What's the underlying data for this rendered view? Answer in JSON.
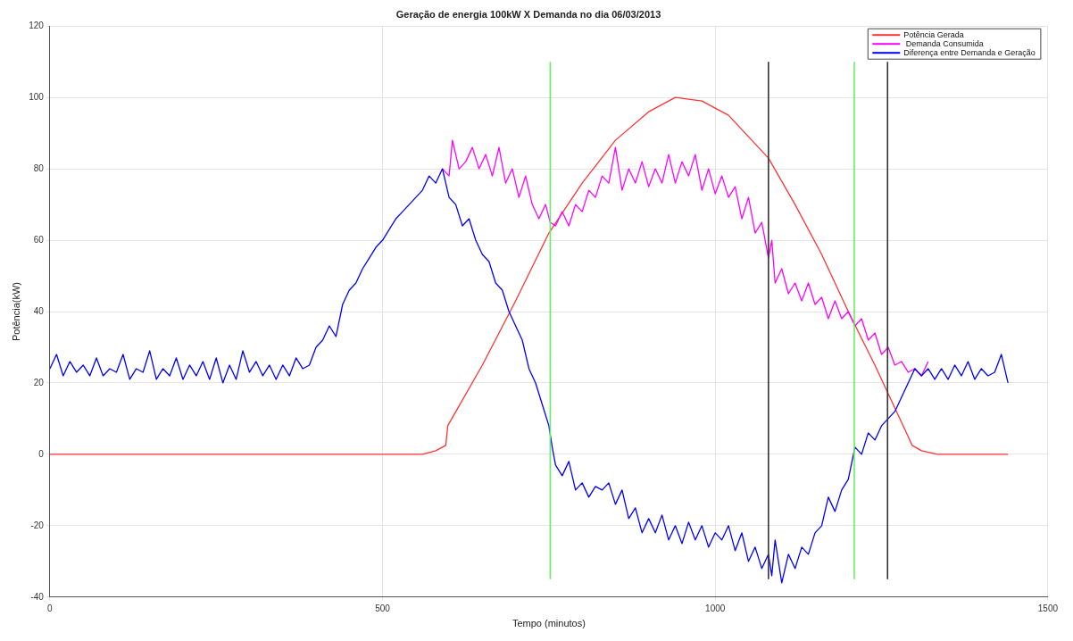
{
  "chart_data": {
    "type": "line",
    "title": "Geração de energia 100kW X Demanda no dia 06/03/2013",
    "xlabel": "Tempo (minutos)",
    "ylabel": "Potência(kW)",
    "xlim": [
      0,
      1500
    ],
    "xticks": [
      0,
      500,
      1000,
      1500
    ],
    "ylim": [
      -40,
      120
    ],
    "yticks": [
      -40,
      -20,
      0,
      20,
      40,
      60,
      80,
      100,
      120
    ],
    "grid": true,
    "legend": "top right",
    "marker": "none",
    "line_style": "solid",
    "series": [
      {
        "name": "Potência Gerada",
        "color": "#ff3333",
        "x": [
          0,
          560,
          580,
          595,
          598,
          650,
          700,
          750,
          800,
          850,
          900,
          940,
          980,
          1020,
          1060,
          1080,
          1120,
          1160,
          1200,
          1240,
          1270,
          1285,
          1296,
          1310,
          1334,
          1440
        ],
        "values": [
          0,
          0,
          1,
          2.5,
          8,
          25,
          43,
          62,
          76,
          88,
          96,
          100,
          99,
          95,
          87,
          83,
          70,
          56,
          40,
          25,
          13,
          7,
          2.5,
          1,
          0,
          0
        ]
      },
      {
        "name": " Demanda Consumida",
        "color": "#ff00ff",
        "x": [
          590,
          600,
          605,
          615,
          625,
          635,
          645,
          655,
          665,
          675,
          685,
          695,
          705,
          715,
          725,
          735,
          745,
          752,
          760,
          770,
          780,
          790,
          800,
          810,
          820,
          830,
          840,
          850,
          860,
          870,
          880,
          890,
          900,
          910,
          920,
          930,
          940,
          950,
          960,
          970,
          980,
          990,
          1000,
          1010,
          1020,
          1030,
          1040,
          1050,
          1060,
          1070,
          1080,
          1085,
          1090,
          1100,
          1110,
          1120,
          1130,
          1140,
          1150,
          1160,
          1170,
          1180,
          1190,
          1200,
          1210,
          1220,
          1230,
          1240,
          1250,
          1260,
          1270,
          1280,
          1290,
          1300,
          1310,
          1320
        ],
        "values": [
          80,
          78,
          88,
          80,
          82,
          86,
          80,
          84,
          78,
          86,
          76,
          80,
          72,
          78,
          70,
          66,
          70,
          65,
          64,
          68,
          64,
          70,
          68,
          74,
          72,
          78,
          76,
          86,
          74,
          80,
          76,
          82,
          75,
          80,
          76,
          84,
          76,
          82,
          78,
          84,
          74,
          80,
          73,
          78,
          72,
          75,
          66,
          72,
          62,
          65,
          55,
          60,
          48,
          52,
          45,
          48,
          43,
          48,
          42,
          44,
          38,
          43,
          38,
          40,
          36,
          38,
          32,
          34,
          28,
          30,
          25,
          26,
          23,
          24,
          22,
          26
        ]
      },
      {
        "name": "Diferença entre Demanda e Geração",
        "color": "#0000ff",
        "x": [
          0,
          10,
          20,
          30,
          40,
          50,
          60,
          70,
          80,
          90,
          100,
          110,
          120,
          130,
          140,
          150,
          160,
          170,
          180,
          190,
          200,
          210,
          220,
          230,
          240,
          250,
          260,
          270,
          280,
          290,
          300,
          310,
          320,
          330,
          340,
          350,
          360,
          370,
          380,
          390,
          400,
          410,
          420,
          430,
          440,
          450,
          460,
          470,
          480,
          490,
          500,
          510,
          520,
          530,
          540,
          550,
          560,
          570,
          580,
          590,
          600,
          610,
          620,
          630,
          640,
          650,
          660,
          670,
          680,
          690,
          700,
          710,
          720,
          730,
          740,
          750,
          755,
          760,
          770,
          780,
          790,
          800,
          810,
          820,
          830,
          840,
          850,
          860,
          870,
          880,
          890,
          900,
          910,
          920,
          930,
          940,
          950,
          960,
          970,
          980,
          990,
          1000,
          1010,
          1020,
          1030,
          1040,
          1050,
          1060,
          1070,
          1080,
          1085,
          1090,
          1100,
          1110,
          1120,
          1130,
          1140,
          1150,
          1160,
          1170,
          1180,
          1190,
          1200,
          1210,
          1220,
          1230,
          1240,
          1250,
          1260,
          1270,
          1280,
          1290,
          1300,
          1310,
          1320,
          1330,
          1340,
          1350,
          1360,
          1370,
          1380,
          1390,
          1400,
          1410,
          1420,
          1430,
          1440
        ],
        "values": [
          24,
          28,
          22,
          26,
          23,
          25,
          22,
          27,
          22,
          24,
          23,
          28,
          21,
          24,
          23,
          29,
          21,
          24,
          22,
          27,
          21,
          25,
          22,
          26,
          21,
          27,
          20,
          25,
          21,
          29,
          23,
          26,
          22,
          25,
          21,
          25,
          22,
          27,
          24,
          25,
          30,
          32,
          36,
          33,
          42,
          46,
          48,
          52,
          55,
          58,
          60,
          63,
          66,
          68,
          70,
          72,
          74,
          78,
          76,
          80,
          72,
          70,
          64,
          66,
          60,
          56,
          54,
          48,
          46,
          40,
          36,
          32,
          24,
          20,
          14,
          8,
          2,
          -3,
          -6,
          -2,
          -10,
          -8,
          -12,
          -9,
          -10,
          -8,
          -14,
          -10,
          -18,
          -15,
          -22,
          -18,
          -22,
          -17,
          -24,
          -20,
          -25,
          -19,
          -24,
          -20,
          -26,
          -22,
          -24,
          -20,
          -27,
          -22,
          -30,
          -26,
          -32,
          -28,
          -34,
          -24,
          -36,
          -28,
          -32,
          -26,
          -28,
          -22,
          -20,
          -12,
          -16,
          -10,
          -7,
          2,
          0,
          6,
          4,
          8,
          10,
          12,
          16,
          20,
          24,
          22,
          24,
          21,
          24,
          21,
          25,
          22,
          26,
          21,
          24,
          22,
          23,
          28,
          20
        ]
      },
      {
        "color": "#66ee66",
        "x": [
          752,
          752
        ],
        "values": [
          -35,
          110
        ]
      },
      {
        "color": "#333333",
        "x": [
          1080,
          1080
        ],
        "values": [
          -35,
          110
        ]
      },
      {
        "color": "#66ee66",
        "x": [
          1209,
          1209
        ],
        "values": [
          -35,
          110
        ]
      },
      {
        "color": "#333333",
        "x": [
          1259,
          1259
        ],
        "values": [
          -35,
          110
        ]
      }
    ]
  }
}
